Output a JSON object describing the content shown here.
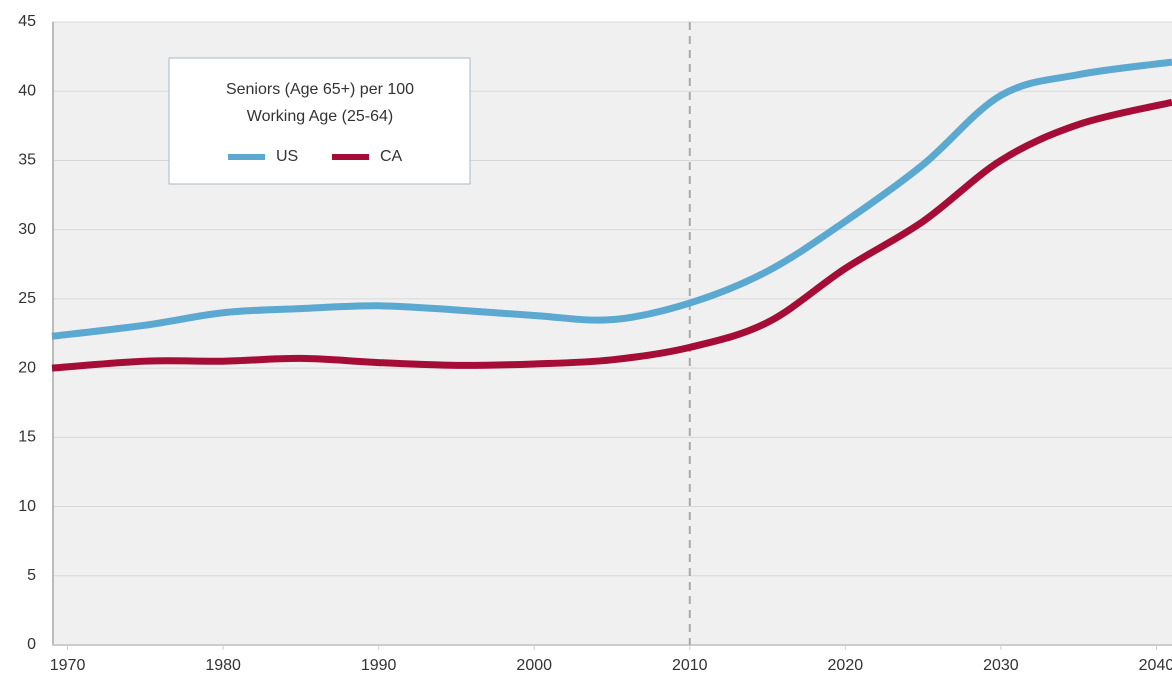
{
  "chart_data": {
    "type": "line",
    "legend_title": [
      "Seniors (Age 65+) per 100",
      "Working Age (25-64)"
    ],
    "x": [
      1969,
      1975,
      1980,
      1985,
      1990,
      1995,
      2000,
      2005,
      2010,
      2015,
      2020,
      2025,
      2030,
      2035,
      2041
    ],
    "series": [
      {
        "name": "US",
        "color": "#5ba8d0",
        "values": [
          22.3,
          23.1,
          24.0,
          24.3,
          24.5,
          24.2,
          23.8,
          23.5,
          24.7,
          27.0,
          30.6,
          34.7,
          39.7,
          41.2,
          42.1
        ]
      },
      {
        "name": "CA",
        "color": "#a50d37",
        "values": [
          20.0,
          20.5,
          20.5,
          20.7,
          20.4,
          20.2,
          20.3,
          20.6,
          21.5,
          23.3,
          27.2,
          30.6,
          35.0,
          37.6,
          39.2
        ]
      }
    ],
    "xlim": [
      1969,
      2041
    ],
    "xticks": [
      1970,
      1980,
      1990,
      2000,
      2010,
      2020,
      2030,
      2040
    ],
    "ylim": [
      0,
      45
    ],
    "yticks": [
      0,
      5,
      10,
      15,
      20,
      25,
      30,
      35,
      40,
      45
    ],
    "grid": true,
    "vline": 2010,
    "legend": "upper left"
  }
}
